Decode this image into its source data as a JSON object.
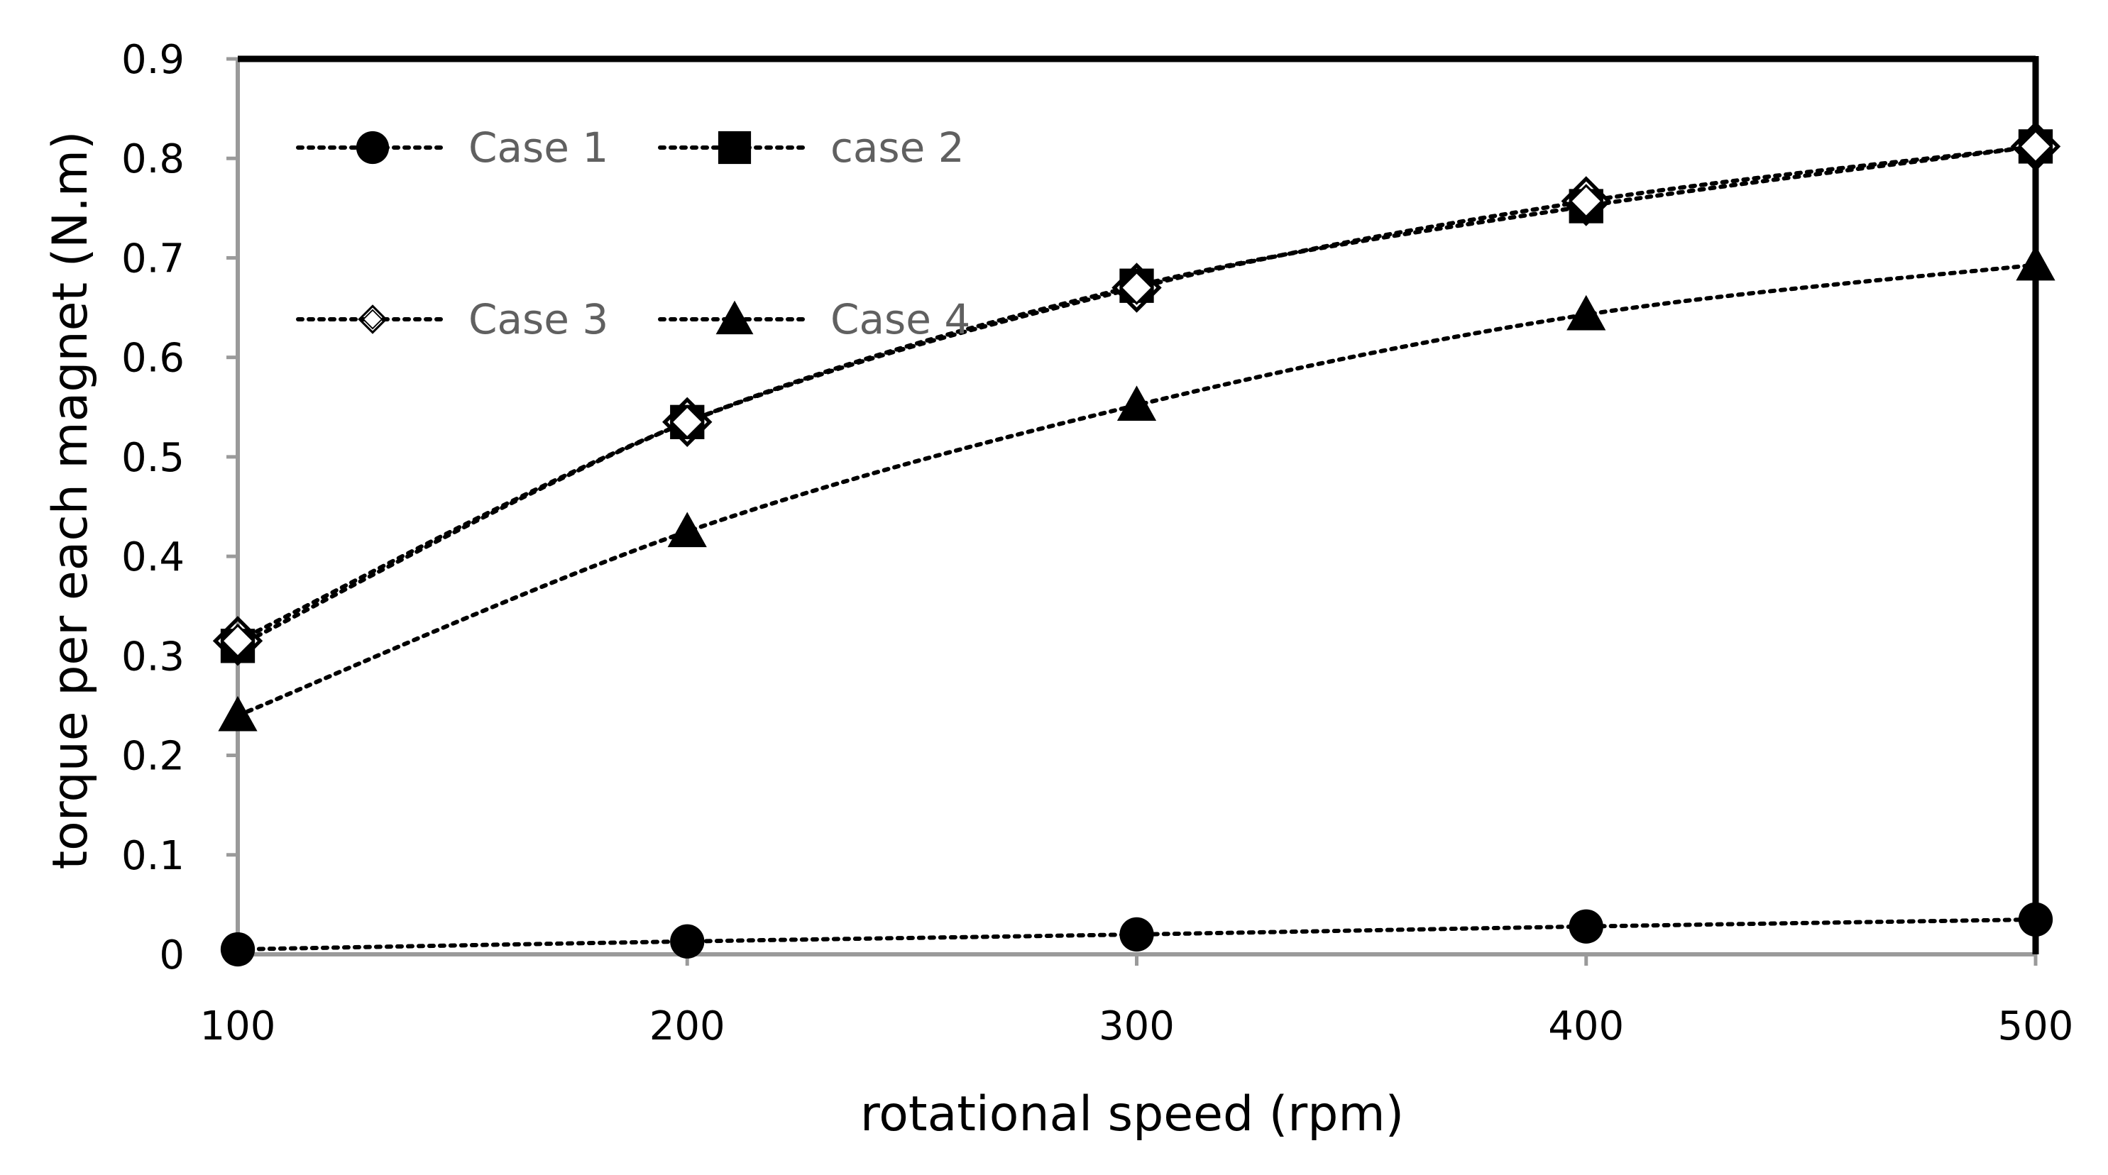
{
  "chart_data": {
    "type": "line",
    "title": "",
    "xlabel": "rotational speed (rpm)",
    "ylabel": "torque per each magnet (N.m)",
    "x": [
      100,
      200,
      300,
      400,
      500
    ],
    "xticks": [
      "100",
      "200",
      "300",
      "400",
      "500"
    ],
    "yticks": [
      "0",
      "0.1",
      "0.2",
      "0.3",
      "0.4",
      "0.5",
      "0.6",
      "0.7",
      "0.8",
      "0.9"
    ],
    "xlim": [
      100,
      500
    ],
    "ylim": [
      0,
      0.9
    ],
    "grid": false,
    "legend_position": "top-left inside",
    "series": [
      {
        "name": "Case 1",
        "marker": "circle",
        "values": [
          0.005,
          0.013,
          0.02,
          0.028,
          0.035
        ]
      },
      {
        "name": "case 2",
        "marker": "square",
        "values": [
          0.31,
          0.535,
          0.672,
          0.752,
          0.812
        ]
      },
      {
        "name": "Case 3",
        "marker": "diamond-open",
        "values": [
          0.315,
          0.535,
          0.67,
          0.757,
          0.812
        ]
      },
      {
        "name": "Case 4",
        "marker": "triangle",
        "values": [
          0.24,
          0.425,
          0.552,
          0.643,
          0.693
        ]
      }
    ],
    "colors": {
      "line": "#000000",
      "marker": "#000000",
      "legend_text": "#606060"
    }
  }
}
